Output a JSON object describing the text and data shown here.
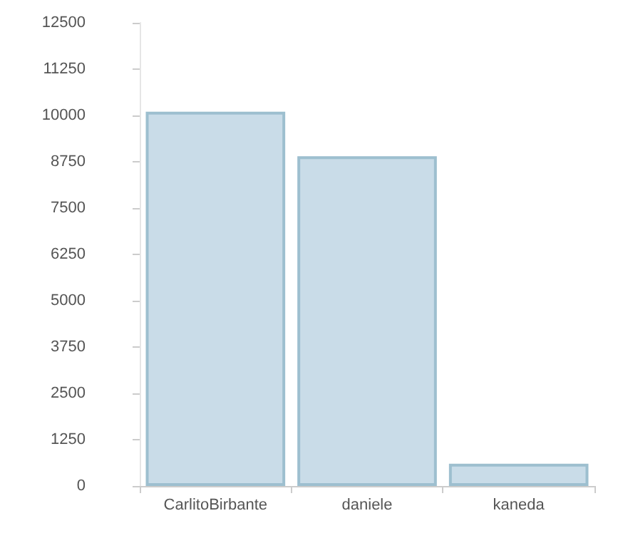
{
  "chart_data": {
    "type": "bar",
    "categories": [
      "CarlitoBirbante",
      "daniele",
      "kaneda"
    ],
    "values": [
      10100,
      8900,
      600
    ],
    "color": "#c9dce8",
    "ylim": [
      0,
      12500
    ],
    "yticks": [
      0,
      1250,
      2500,
      3750,
      5000,
      6250,
      7500,
      8750,
      10000,
      11250,
      12500
    ],
    "grid": false
  }
}
